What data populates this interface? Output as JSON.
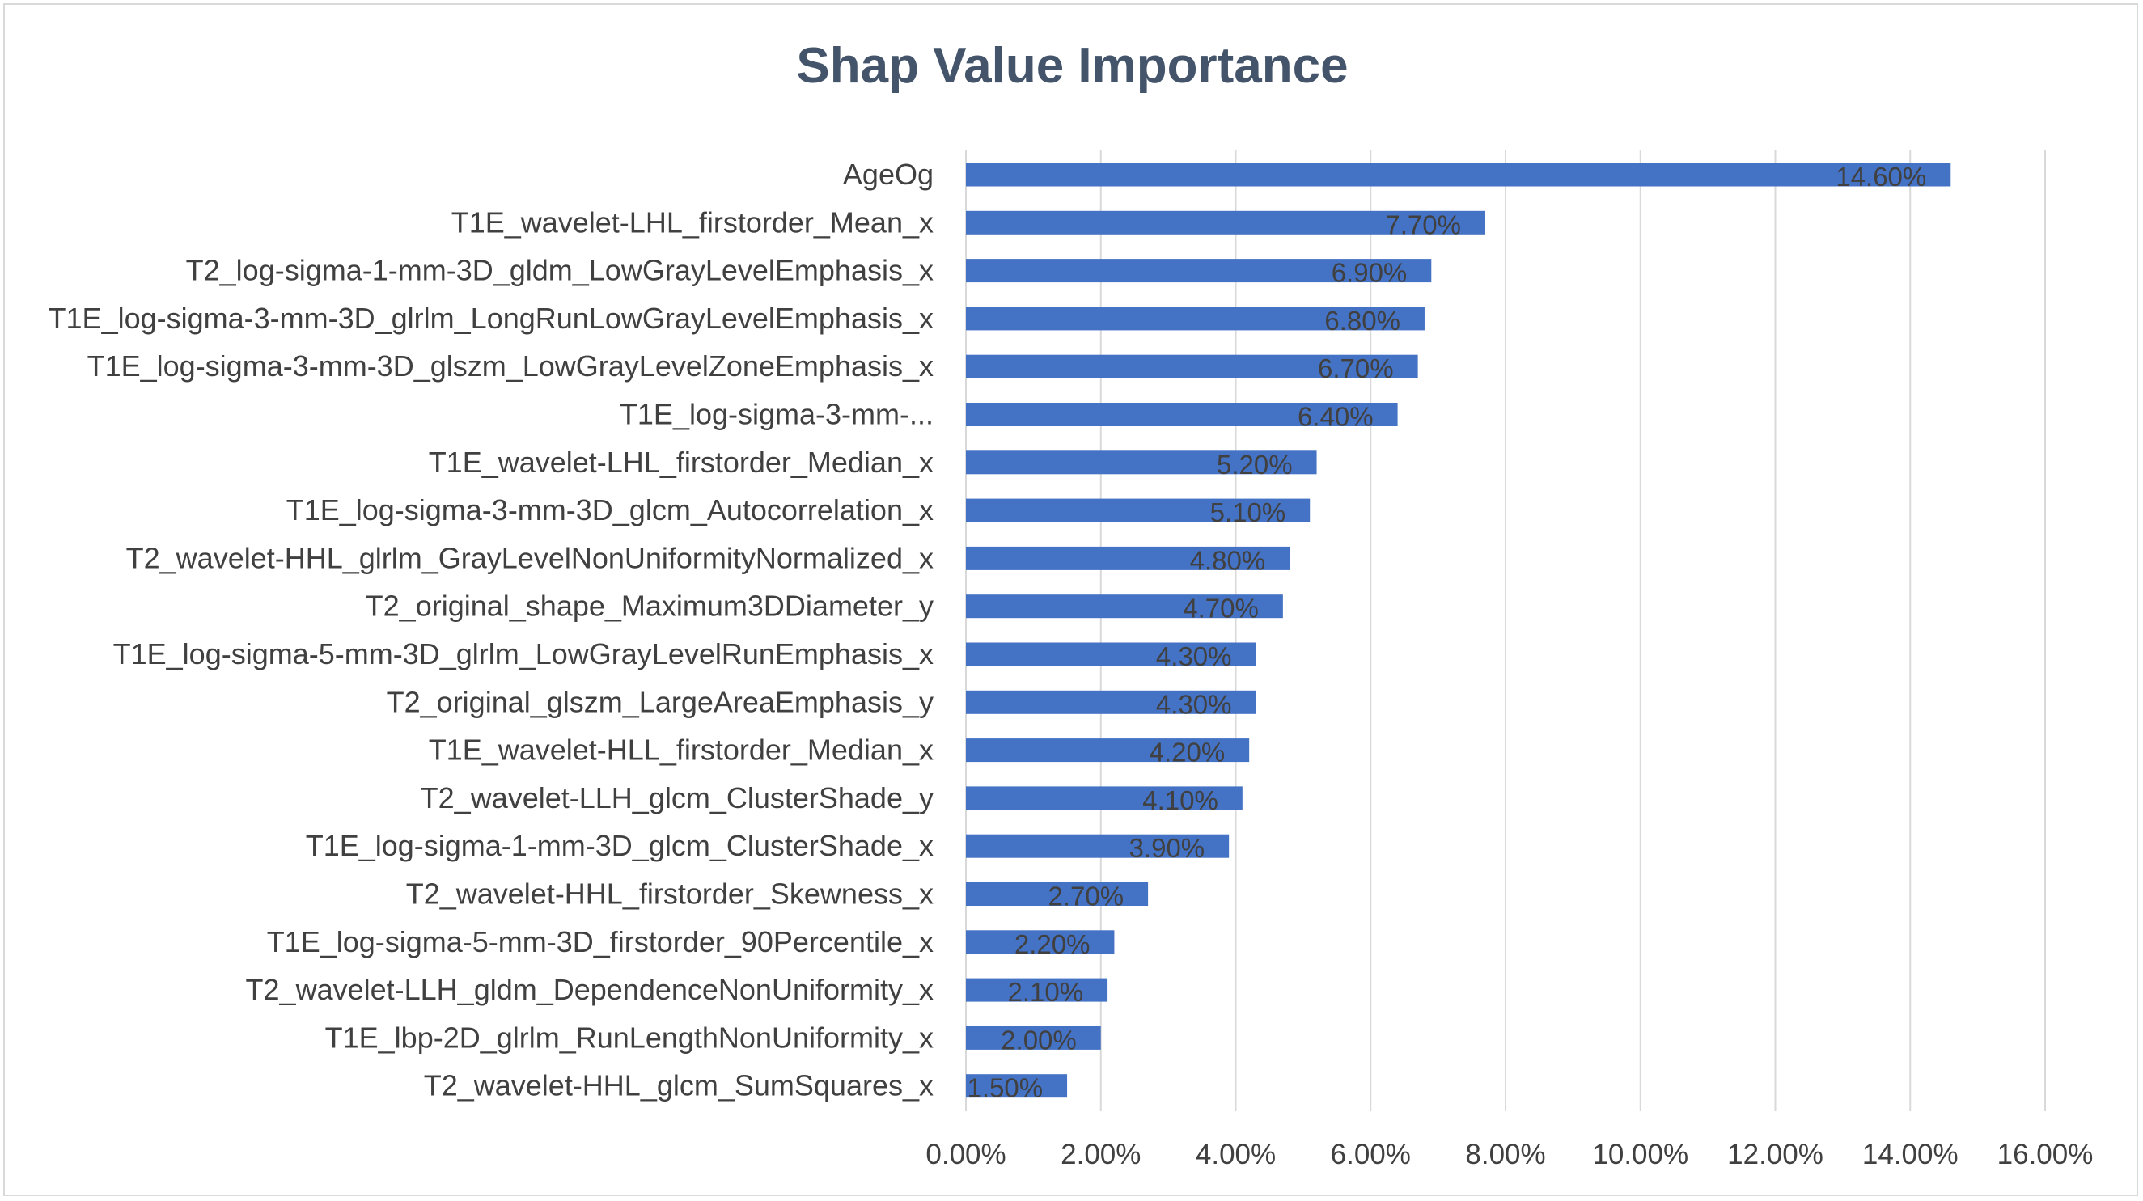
{
  "chart_data": {
    "type": "bar",
    "orientation": "horizontal",
    "title": "Shap Value Importance",
    "xlabel": "",
    "ylabel": "",
    "xlim": [
      0,
      16
    ],
    "x_ticks": [
      "0.00%",
      "2.00%",
      "4.00%",
      "6.00%",
      "8.00%",
      "10.00%",
      "12.00%",
      "14.00%",
      "16.00%"
    ],
    "grid": "vertical",
    "bar_color": "#4472c4",
    "categories": [
      "AgeOg",
      "T1E_wavelet-LHL_firstorder_Mean_x",
      "T2_log-sigma-1-mm-3D_gldm_LowGrayLevelEmphasis_x",
      "T1E_log-sigma-3-mm-3D_glrlm_LongRunLowGrayLevelEmphasis_x",
      "T1E_log-sigma-3-mm-3D_glszm_LowGrayLevelZoneEmphasis_x",
      "T1E_log-sigma-3-mm-...",
      "T1E_wavelet-LHL_firstorder_Median_x",
      "T1E_log-sigma-3-mm-3D_glcm_Autocorrelation_x",
      "T2_wavelet-HHL_glrlm_GrayLevelNonUniformityNormalized_x",
      "T2_original_shape_Maximum3DDiameter_y",
      "T1E_log-sigma-5-mm-3D_glrlm_LowGrayLevelRunEmphasis_x",
      "T2_original_glszm_LargeAreaEmphasis_y",
      "T1E_wavelet-HLL_firstorder_Median_x",
      "T2_wavelet-LLH_glcm_ClusterShade_y",
      "T1E_log-sigma-1-mm-3D_glcm_ClusterShade_x",
      "T2_wavelet-HHL_firstorder_Skewness_x",
      "T1E_log-sigma-5-mm-3D_firstorder_90Percentile_x",
      "T2_wavelet-LLH_gldm_DependenceNonUniformity_x",
      "T1E_lbp-2D_glrlm_RunLengthNonUniformity_x",
      "T2_wavelet-HHL_glcm_SumSquares_x"
    ],
    "values": [
      14.6,
      7.7,
      6.9,
      6.8,
      6.7,
      6.4,
      5.2,
      5.1,
      4.8,
      4.7,
      4.3,
      4.3,
      4.2,
      4.1,
      3.9,
      2.7,
      2.2,
      2.1,
      2.0,
      1.5
    ],
    "data_labels": [
      "14.60%",
      "7.70%",
      "6.90%",
      "6.80%",
      "6.70%",
      "6.40%",
      "5.20%",
      "5.10%",
      "4.80%",
      "4.70%",
      "4.30%",
      "4.30%",
      "4.20%",
      "4.10%",
      "3.90%",
      "2.70%",
      "2.20%",
      "2.10%",
      "2.00%",
      "1.50%"
    ]
  }
}
